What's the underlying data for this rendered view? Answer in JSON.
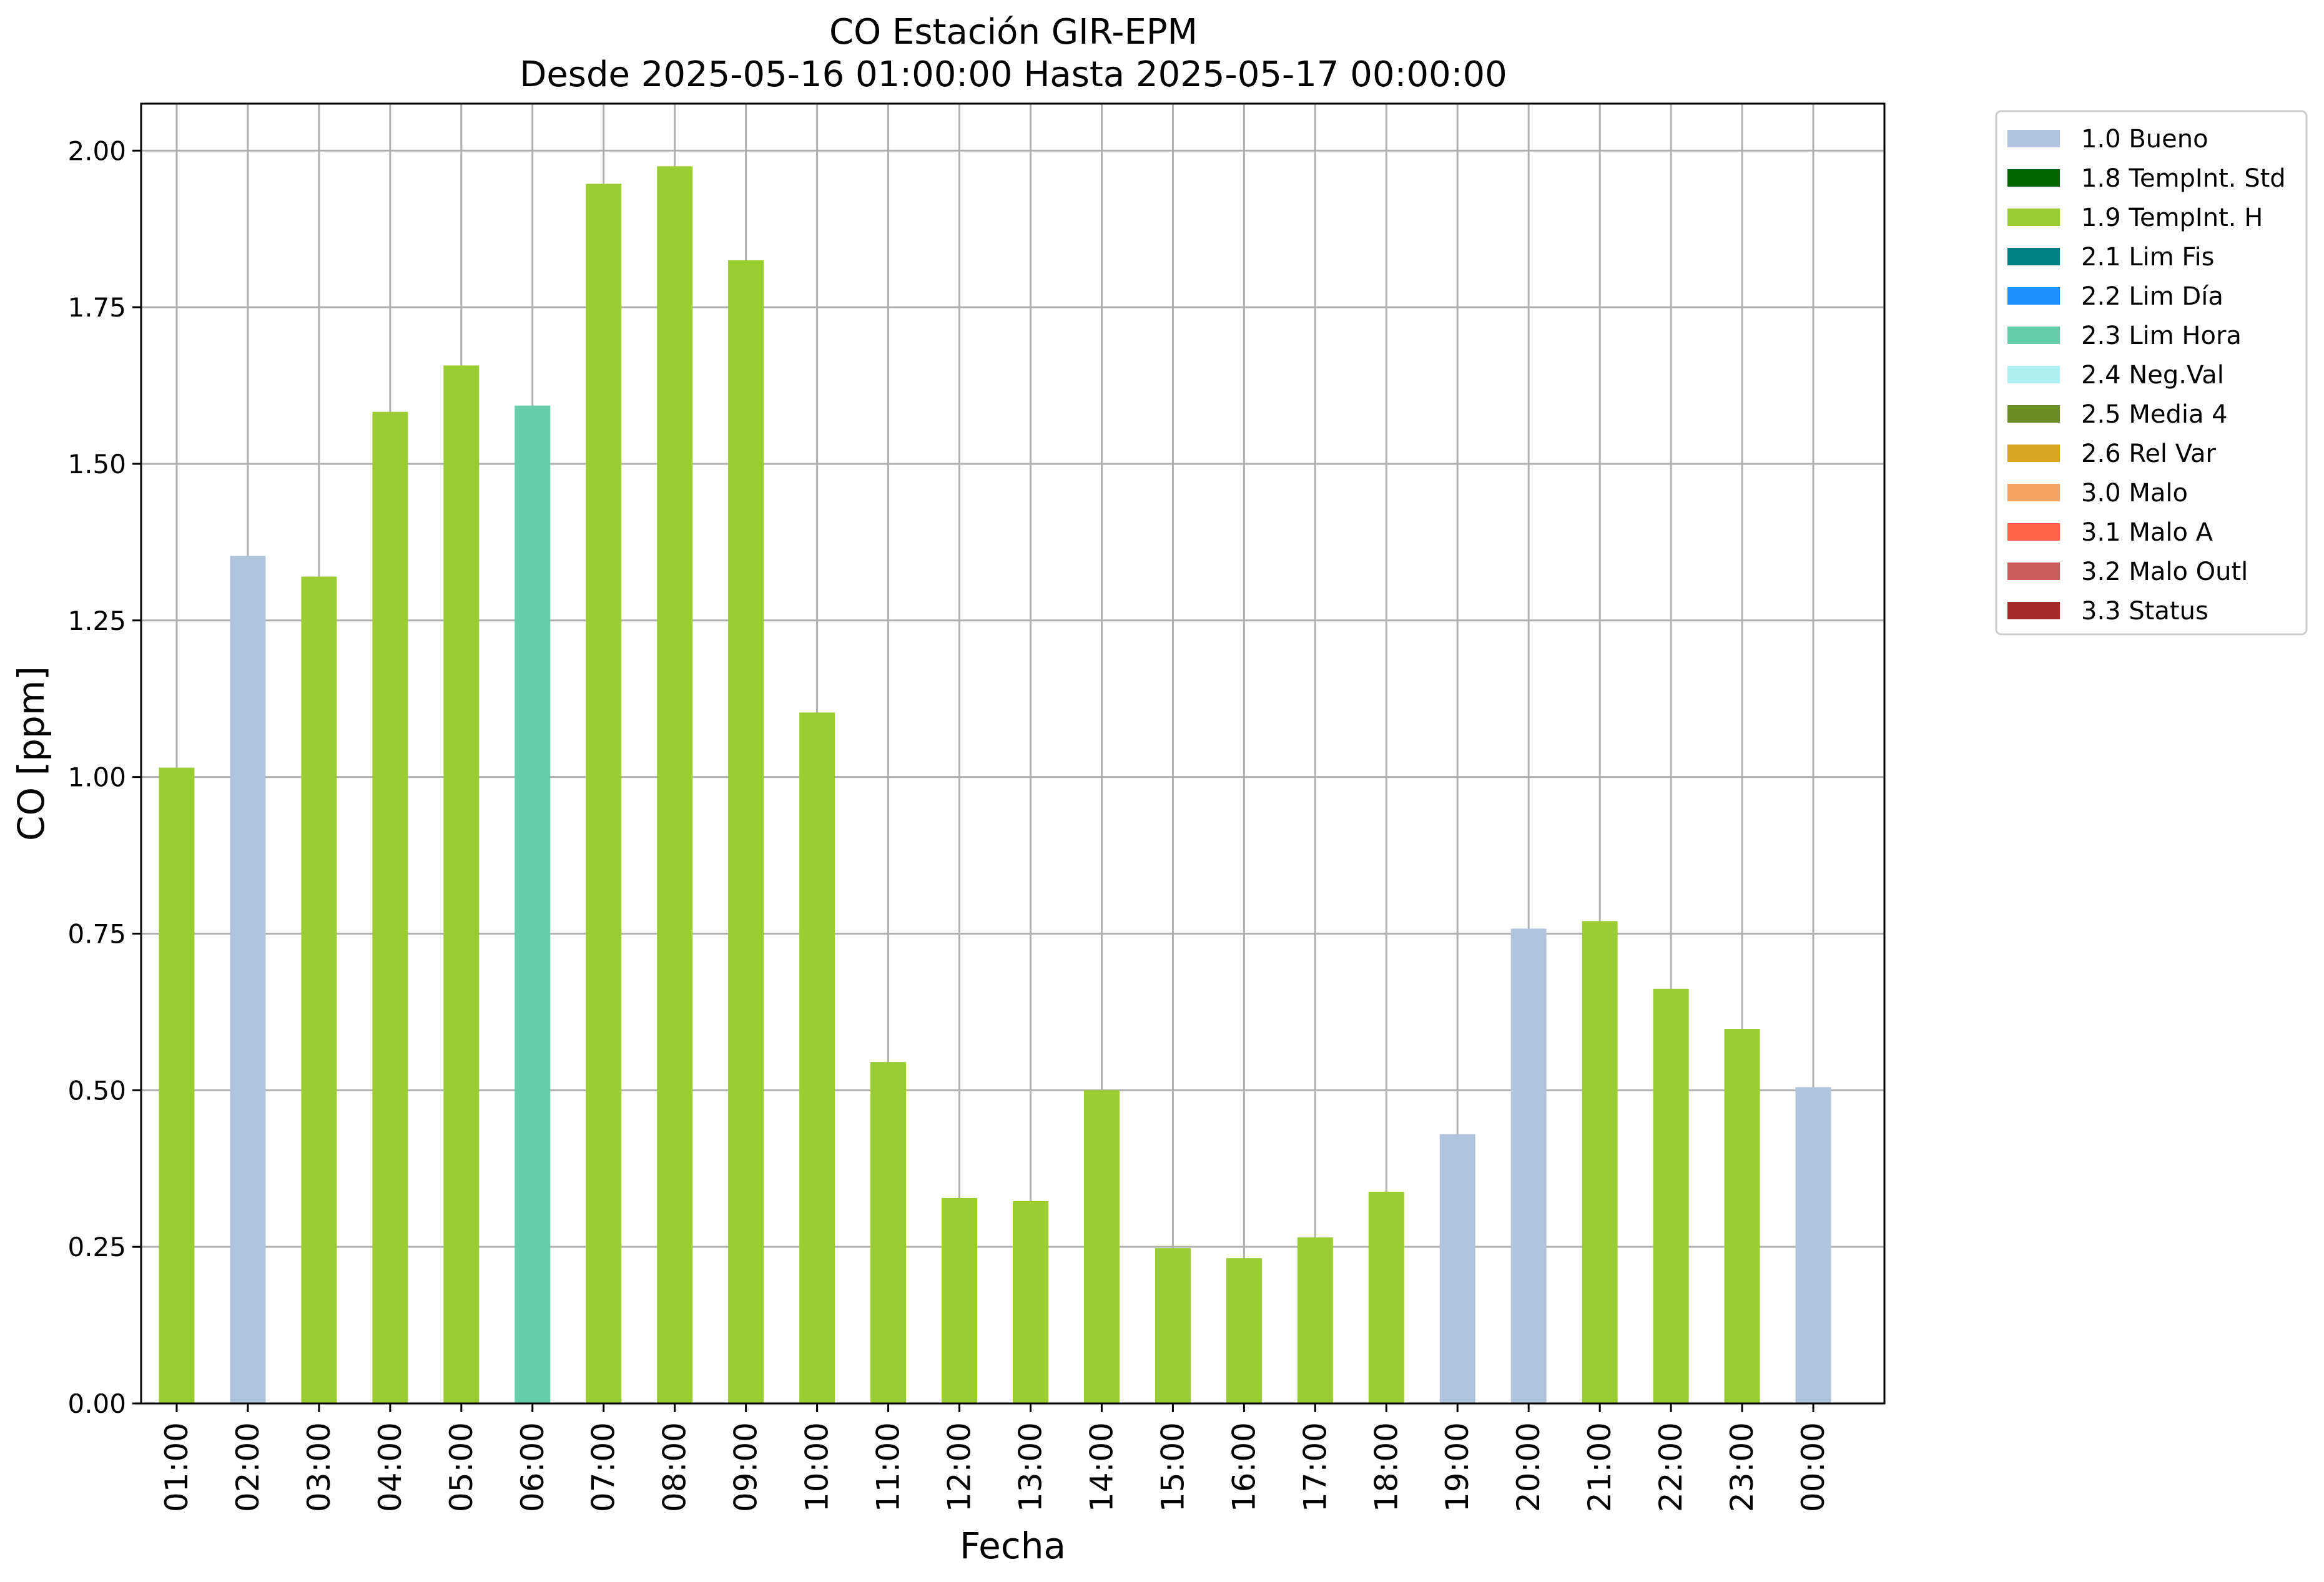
{
  "chart_data": {
    "type": "bar",
    "title_line1": "CO Estación GIR-EPM",
    "title_line2": "Desde 2025-05-16 01:00:00 Hasta 2025-05-17 00:00:00",
    "xlabel": "Fecha",
    "ylabel": "CO [ppm]",
    "ylim": [
      0,
      2.075
    ],
    "yticks": [
      "0.00",
      "0.25",
      "0.50",
      "0.75",
      "1.00",
      "1.25",
      "1.50",
      "1.75",
      "2.00"
    ],
    "grid": true,
    "legend_position": "outside-top-right",
    "categories": [
      "01:00",
      "02:00",
      "03:00",
      "04:00",
      "05:00",
      "06:00",
      "07:00",
      "08:00",
      "09:00",
      "10:00",
      "11:00",
      "12:00",
      "13:00",
      "14:00",
      "15:00",
      "16:00",
      "17:00",
      "18:00",
      "19:00",
      "20:00",
      "21:00",
      "22:00",
      "23:00",
      "00:00"
    ],
    "values": [
      1.015,
      1.353,
      1.32,
      1.583,
      1.657,
      1.593,
      1.947,
      1.975,
      1.825,
      1.103,
      0.545,
      0.328,
      0.323,
      0.5,
      0.248,
      0.232,
      0.265,
      0.338,
      0.43,
      0.758,
      0.77,
      0.662,
      0.598,
      0.505
    ],
    "flags": [
      "1.9 TempInt. H",
      "1.0 Bueno",
      "1.9 TempInt. H",
      "1.9 TempInt. H",
      "1.9 TempInt. H",
      "2.3 Lim Hora",
      "1.9 TempInt. H",
      "1.9 TempInt. H",
      "1.9 TempInt. H",
      "1.9 TempInt. H",
      "1.9 TempInt. H",
      "1.9 TempInt. H",
      "1.9 TempInt. H",
      "1.9 TempInt. H",
      "1.9 TempInt. H",
      "1.9 TempInt. H",
      "1.9 TempInt. H",
      "1.9 TempInt. H",
      "1.0 Bueno",
      "1.0 Bueno",
      "1.9 TempInt. H",
      "1.9 TempInt. H",
      "1.9 TempInt. H",
      "1.0 Bueno"
    ],
    "legend": [
      {
        "label": "1.0 Bueno",
        "color": "#b0c4de"
      },
      {
        "label": "1.8 TempInt. Std",
        "color": "#006400"
      },
      {
        "label": "1.9 TempInt. H",
        "color": "#9acd32"
      },
      {
        "label": "2.1 Lim Fis",
        "color": "#008080"
      },
      {
        "label": "2.2 Lim Día",
        "color": "#1e90ff"
      },
      {
        "label": "2.3 Lim Hora",
        "color": "#66cdaa"
      },
      {
        "label": "2.4 Neg.Val",
        "color": "#afeeee"
      },
      {
        "label": "2.5 Media 4",
        "color": "#6b8e23"
      },
      {
        "label": "2.6 Rel Var",
        "color": "#daa520"
      },
      {
        "label": "3.0 Malo",
        "color": "#f4a460"
      },
      {
        "label": "3.1 Malo A",
        "color": "#ff6347"
      },
      {
        "label": "3.2 Malo Outl",
        "color": "#cd5c5c"
      },
      {
        "label": "3.3 Status",
        "color": "#a52a2a"
      }
    ]
  }
}
